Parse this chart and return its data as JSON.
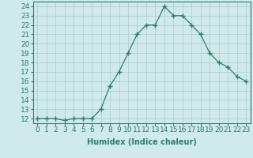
{
  "xlabel": "Humidex (Indice chaleur)",
  "x_values": [
    0,
    1,
    2,
    3,
    4,
    5,
    6,
    7,
    8,
    9,
    10,
    11,
    12,
    13,
    14,
    15,
    16,
    17,
    18,
    19,
    20,
    21,
    22,
    23
  ],
  "y_values": [
    12,
    12,
    12,
    11.8,
    12,
    12,
    12,
    13,
    15.5,
    17,
    19,
    21,
    22,
    22,
    24,
    23,
    23,
    22,
    21,
    19,
    18,
    17.5,
    16.5,
    16
  ],
  "xlim": [
    -0.5,
    23.5
  ],
  "ylim": [
    11.5,
    24.5
  ],
  "yticks": [
    12,
    13,
    14,
    15,
    16,
    17,
    18,
    19,
    20,
    21,
    22,
    23,
    24
  ],
  "xticks": [
    0,
    1,
    2,
    3,
    4,
    5,
    6,
    7,
    8,
    9,
    10,
    11,
    12,
    13,
    14,
    15,
    16,
    17,
    18,
    19,
    20,
    21,
    22,
    23
  ],
  "line_color": "#2e7d6e",
  "marker": "+",
  "bg_color": "#ceeaea",
  "grid_color": "#b0c8c8",
  "axis_color": "#2e7d6e",
  "tick_color": "#2e7d6e",
  "label_color": "#2e7d6e",
  "label_fontsize": 7,
  "tick_fontsize": 6.5
}
